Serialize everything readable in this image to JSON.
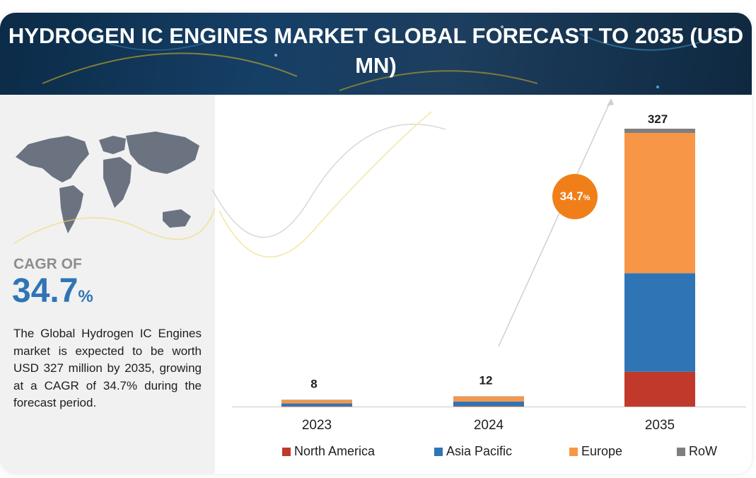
{
  "title": "HYDROGEN IC ENGINES MARKET GLOBAL FORECAST TO 2035  (USD MN)",
  "sidebar": {
    "cagr_label": "CAGR OF",
    "cagr_value": "34.7",
    "cagr_unit": "%",
    "description": "The Global Hydrogen IC Engines market is expected to be worth USD 327 million by 2035, growing at a CAGR of 34.7% during the forecast period."
  },
  "bubble": {
    "value": "34.7",
    "unit": "%"
  },
  "colors": {
    "north_america": "#c0392b",
    "asia_pacific": "#2f75b5",
    "europe": "#f79646",
    "row": "#7f7f7f",
    "bubble": "#f07f1a",
    "cagr_text": "#2f75b5"
  },
  "chart_data": {
    "type": "bar",
    "stacked": true,
    "title": "HYDROGEN IC ENGINES MARKET GLOBAL FORECAST TO 2035  (USD MN)",
    "categories": [
      "2023",
      "2024",
      "2035"
    ],
    "totals": [
      8,
      12,
      327
    ],
    "series": [
      {
        "name": "North America",
        "color": "#c0392b",
        "values": [
          0.3,
          0.7,
          41
        ]
      },
      {
        "name": "Asia Pacific",
        "color": "#2f75b5",
        "values": [
          3.4,
          5.3,
          116
        ]
      },
      {
        "name": "Europe",
        "color": "#f79646",
        "values": [
          4.1,
          5.7,
          165
        ]
      },
      {
        "name": "RoW",
        "color": "#7f7f7f",
        "values": [
          0.2,
          0.3,
          5
        ]
      }
    ],
    "ylim": [
      0,
      327
    ],
    "grid": false,
    "legend_position": "bottom",
    "xlabel": "",
    "ylabel": ""
  }
}
